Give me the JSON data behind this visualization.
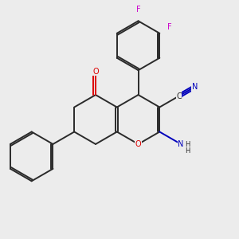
{
  "background_color": "#ececec",
  "bond_color": "#2a2a2a",
  "oxygen_color": "#dd0000",
  "nitrogen_color": "#0000bb",
  "fluorine_color": "#cc00cc",
  "carbon_color": "#2a2a2a",
  "figsize": [
    3.0,
    3.0
  ],
  "dpi": 100,
  "xlim": [
    0,
    10
  ],
  "ylim": [
    0,
    10
  ]
}
